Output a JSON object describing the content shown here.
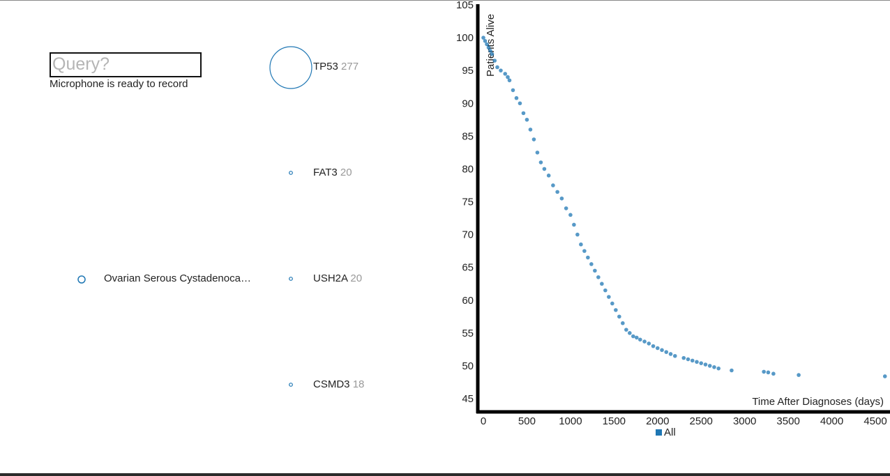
{
  "search": {
    "placeholder": "Query?",
    "value": ""
  },
  "mic_status": "Microphone is ready to record",
  "cancer": {
    "label": "Ovarian Serous Cystadenoca…"
  },
  "genes": [
    {
      "name": "TP53",
      "count": "277"
    },
    {
      "name": "FAT3",
      "count": "20"
    },
    {
      "name": "USH2A",
      "count": "20"
    },
    {
      "name": "CSMD3",
      "count": "18"
    }
  ],
  "colors": {
    "accent": "#1f77b4",
    "axis": "#000000"
  },
  "legend": {
    "label": "All"
  },
  "chart_data": {
    "type": "scatter",
    "xlabel": "Time After Diagnoses (days)",
    "ylabel": "Patients Alive",
    "xlim": [
      0,
      4600
    ],
    "ylim": [
      45,
      105
    ],
    "xticks": [
      "0",
      "500",
      "1000",
      "1500",
      "2000",
      "2500",
      "3000",
      "3500",
      "4000",
      "4500"
    ],
    "yticks": [
      "45",
      "50",
      "55",
      "60",
      "65",
      "70",
      "75",
      "80",
      "85",
      "90",
      "95",
      "100",
      "105"
    ],
    "legend": "bottom-center",
    "series": [
      {
        "name": "All",
        "x": [
          0,
          20,
          40,
          60,
          80,
          100,
          130,
          160,
          200,
          250,
          280,
          300,
          340,
          380,
          420,
          460,
          500,
          540,
          580,
          620,
          660,
          700,
          750,
          800,
          850,
          900,
          950,
          1000,
          1040,
          1080,
          1120,
          1160,
          1200,
          1240,
          1280,
          1320,
          1360,
          1400,
          1440,
          1480,
          1520,
          1560,
          1600,
          1640,
          1680,
          1720,
          1760,
          1800,
          1850,
          1900,
          1950,
          2000,
          2050,
          2100,
          2150,
          2200,
          2300,
          2350,
          2400,
          2450,
          2500,
          2550,
          2600,
          2650,
          2700,
          2850,
          3220,
          3270,
          3330,
          3620,
          4610
        ],
        "y": [
          100,
          99.5,
          99,
          98.5,
          98,
          97.5,
          96.5,
          95.5,
          95,
          94.5,
          94,
          93.5,
          92,
          90.8,
          90,
          88.5,
          87.5,
          86,
          84.5,
          82.5,
          81,
          80,
          79,
          77.5,
          76.5,
          75.5,
          74,
          73,
          71.5,
          70,
          68.5,
          67.5,
          66.5,
          65.5,
          64.5,
          63.5,
          62.5,
          61.5,
          60.5,
          59.5,
          58.5,
          57.5,
          56.5,
          55.5,
          55,
          54.5,
          54.3,
          54,
          53.7,
          53.4,
          53,
          52.7,
          52.4,
          52.1,
          51.8,
          51.5,
          51.2,
          51,
          50.8,
          50.6,
          50.4,
          50.2,
          50,
          49.8,
          49.6,
          49.3,
          49.1,
          49,
          48.8,
          48.6,
          48.4
        ]
      }
    ]
  }
}
